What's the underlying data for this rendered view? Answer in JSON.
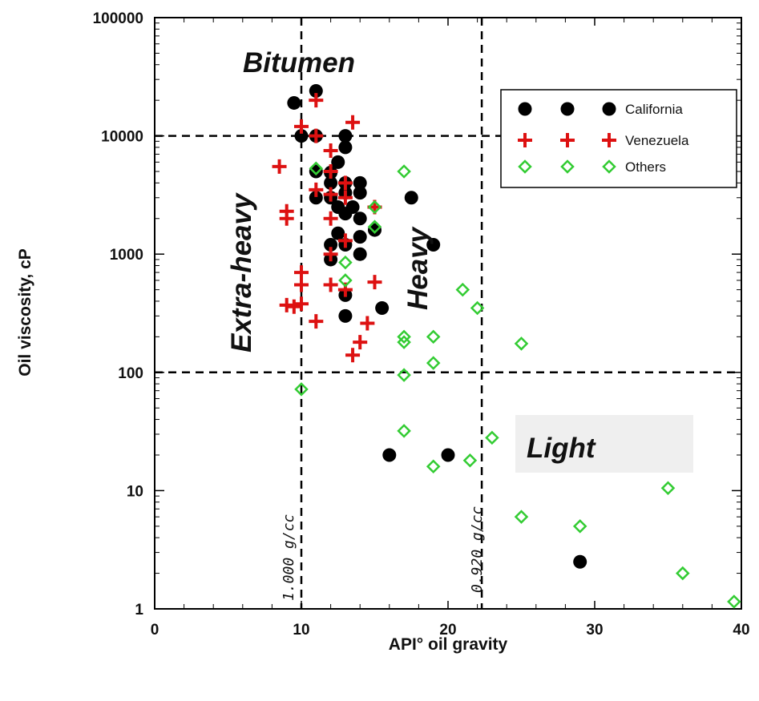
{
  "chart_data": {
    "type": "scatter",
    "xlabel": "API° oil gravity",
    "ylabel": "Oil viscosity, cP",
    "xlim": [
      0,
      40
    ],
    "ylim": [
      1,
      100000
    ],
    "yscale": "log",
    "grid": false,
    "legend_position": "top-right",
    "x_ticks": [
      0,
      10,
      20,
      30,
      40
    ],
    "y_ticks": [
      1,
      10,
      100,
      1000,
      10000,
      100000
    ],
    "reference_lines": {
      "vertical": [
        10,
        22.3
      ],
      "horizontal": [
        100,
        10000
      ]
    },
    "region_labels": [
      "Bitumen",
      "Extra-heavy",
      "Heavy",
      "Light"
    ],
    "density_labels": [
      "1.000 g/cc",
      "0.920 g/cc"
    ],
    "series": [
      {
        "name": "California",
        "marker": "circle",
        "color": "#000000",
        "points": [
          [
            9.5,
            19000
          ],
          [
            11,
            24000
          ],
          [
            10,
            10000
          ],
          [
            11,
            10000
          ],
          [
            13,
            10000
          ],
          [
            13,
            8000
          ],
          [
            11,
            5000
          ],
          [
            12,
            4900
          ],
          [
            12.5,
            6000
          ],
          [
            12,
            4000
          ],
          [
            13,
            4000
          ],
          [
            14,
            4000
          ],
          [
            11,
            3000
          ],
          [
            12,
            3000
          ],
          [
            13,
            3300
          ],
          [
            14,
            3300
          ],
          [
            12.5,
            2500
          ],
          [
            13.5,
            2500
          ],
          [
            13,
            2200
          ],
          [
            14,
            2000
          ],
          [
            12.5,
            1500
          ],
          [
            14,
            1400
          ],
          [
            15,
            1600
          ],
          [
            12,
            1200
          ],
          [
            13,
            1200
          ],
          [
            12,
            900
          ],
          [
            14,
            1000
          ],
          [
            17.5,
            3000
          ],
          [
            19,
            1200
          ],
          [
            13,
            450
          ],
          [
            15.5,
            350
          ],
          [
            13,
            300
          ],
          [
            16,
            20
          ],
          [
            20,
            20
          ],
          [
            29,
            2.5
          ]
        ]
      },
      {
        "name": "Venezuela",
        "marker": "plus",
        "color": "#dd1111",
        "points": [
          [
            11,
            20000
          ],
          [
            10,
            12000
          ],
          [
            11,
            10000
          ],
          [
            13.5,
            13000
          ],
          [
            12,
            7500
          ],
          [
            8.5,
            5500
          ],
          [
            12,
            5000
          ],
          [
            11,
            3500
          ],
          [
            12,
            3200
          ],
          [
            13,
            4000
          ],
          [
            13,
            3000
          ],
          [
            9,
            2300
          ],
          [
            9,
            2000
          ],
          [
            12,
            2000
          ],
          [
            15,
            2500
          ],
          [
            13,
            1300
          ],
          [
            12,
            1000
          ],
          [
            10,
            700
          ],
          [
            10,
            550
          ],
          [
            12,
            550
          ],
          [
            13,
            500
          ],
          [
            15,
            580
          ],
          [
            9,
            370
          ],
          [
            9.5,
            360
          ],
          [
            10,
            380
          ],
          [
            11,
            270
          ],
          [
            14.5,
            260
          ],
          [
            14,
            180
          ],
          [
            13.5,
            140
          ]
        ]
      },
      {
        "name": "Others",
        "marker": "diamond",
        "color": "#33cc33",
        "points": [
          [
            11,
            5300
          ],
          [
            17,
            5000
          ],
          [
            15,
            2500
          ],
          [
            15,
            1700
          ],
          [
            13,
            850
          ],
          [
            13,
            600
          ],
          [
            21,
            500
          ],
          [
            22,
            350
          ],
          [
            17,
            200
          ],
          [
            19,
            200
          ],
          [
            17,
            180
          ],
          [
            25,
            175
          ],
          [
            19,
            120
          ],
          [
            17,
            95
          ],
          [
            10,
            72
          ],
          [
            17,
            32
          ],
          [
            23,
            28
          ],
          [
            19,
            16
          ],
          [
            21.5,
            18
          ],
          [
            35,
            10.5
          ],
          [
            25,
            6
          ],
          [
            29,
            5
          ],
          [
            36,
            2
          ],
          [
            39.5,
            1.15
          ]
        ]
      }
    ]
  }
}
